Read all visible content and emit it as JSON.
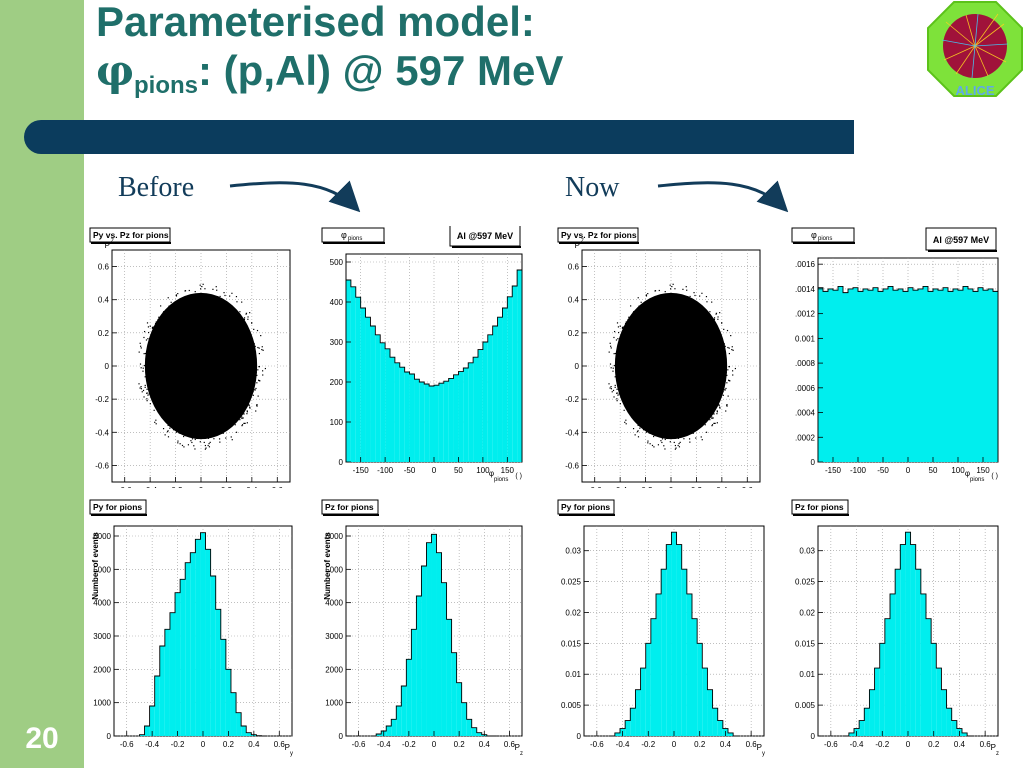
{
  "slide": {
    "title_line1": "Parameterised model:",
    "title_phi": "φ",
    "title_sub": "pions",
    "title_rest": ": (p,Al) @ 597 MeV",
    "page_number": "20",
    "label_before": "Before",
    "label_now": "Now",
    "logo_text": "ALICE"
  },
  "colors": {
    "sidebar": "#9fcd84",
    "title": "#1f6f6a",
    "bar": "#0b3c5d",
    "fill": "#00eeee"
  },
  "chart_data": [
    {
      "id": "before_scatter",
      "type": "scatter",
      "title": "Py vs. Pz for pions",
      "xlabel": "P",
      "xsub": "y",
      "ylabel": "P",
      "ysub": "z",
      "xlim": [
        -0.7,
        0.7
      ],
      "ylim": [
        -0.7,
        0.7
      ],
      "xticks": [
        -0.6,
        -0.4,
        -0.2,
        0,
        0.2,
        0.4,
        0.6
      ],
      "yticks": [
        -0.6,
        -0.4,
        -0.2,
        0,
        0.2,
        0.4,
        0.6
      ],
      "cloud": {
        "center": [
          0,
          0
        ],
        "half_width": 0.48,
        "half_height": 0.48
      }
    },
    {
      "id": "before_phi",
      "type": "bar",
      "title": "φ",
      "title_sub": "pions",
      "legend": "Al @597 MeV",
      "xlabel": "φ",
      "xsub": "pions",
      "xunit": "( )",
      "xlim": [
        -180,
        180
      ],
      "ylim": [
        0,
        520
      ],
      "xticks": [
        -150,
        -100,
        -50,
        0,
        50,
        100,
        150
      ],
      "yticks": [
        0,
        100,
        200,
        300,
        400,
        500
      ],
      "x": [
        -175,
        -165,
        -155,
        -145,
        -135,
        -125,
        -115,
        -105,
        -95,
        -85,
        -75,
        -65,
        -55,
        -45,
        -35,
        -25,
        -15,
        -5,
        5,
        15,
        25,
        35,
        45,
        55,
        65,
        75,
        85,
        95,
        105,
        115,
        125,
        135,
        145,
        155,
        165,
        175
      ],
      "values": [
        455,
        438,
        412,
        385,
        362,
        340,
        318,
        298,
        283,
        262,
        248,
        237,
        225,
        220,
        207,
        200,
        195,
        190,
        192,
        197,
        202,
        209,
        218,
        226,
        235,
        248,
        262,
        281,
        300,
        318,
        340,
        362,
        385,
        413,
        440,
        480
      ]
    },
    {
      "id": "now_scatter",
      "type": "scatter",
      "title": "Py vs. Pz for pions",
      "xlabel": "P",
      "xsub": "y",
      "ylabel": "P",
      "ysub": "z",
      "xlim": [
        -0.7,
        0.7
      ],
      "ylim": [
        -0.7,
        0.7
      ],
      "xticks": [
        -0.6,
        -0.4,
        -0.2,
        0,
        0.2,
        0.4,
        0.6
      ],
      "yticks": [
        -0.6,
        -0.4,
        -0.2,
        0,
        0.2,
        0.4,
        0.6
      ],
      "cloud": {
        "center": [
          0,
          0
        ],
        "half_width": 0.48,
        "half_height": 0.48
      }
    },
    {
      "id": "now_phi",
      "type": "bar",
      "title": "φ",
      "title_sub": "pions",
      "legend": "Al @597 MeV",
      "xlabel": "φ",
      "xsub": "pions",
      "xunit": "( )",
      "xlim": [
        -180,
        180
      ],
      "ylim": [
        0,
        0.00165
      ],
      "xticks": [
        -150,
        -100,
        -50,
        0,
        50,
        100,
        150
      ],
      "yticks": [
        0,
        0.0002,
        0.0004,
        0.0006,
        0.0008,
        0.001,
        0.0012,
        0.0014,
        0.0016
      ],
      "ytick_labels": [
        "0",
        ".0002",
        ".0004",
        ".0006",
        ".0008",
        "0.001",
        ".0012",
        ".0014",
        ".0016"
      ],
      "x": [
        -175,
        -165,
        -155,
        -145,
        -135,
        -125,
        -115,
        -105,
        -95,
        -85,
        -75,
        -65,
        -55,
        -45,
        -35,
        -25,
        -15,
        -5,
        5,
        15,
        25,
        35,
        45,
        55,
        65,
        75,
        85,
        95,
        105,
        115,
        125,
        135,
        145,
        155,
        165,
        175
      ],
      "values": [
        0.00141,
        0.00138,
        0.0014,
        0.00139,
        0.00142,
        0.00137,
        0.0014,
        0.00141,
        0.00138,
        0.0014,
        0.00139,
        0.00141,
        0.00138,
        0.0014,
        0.00142,
        0.00139,
        0.0014,
        0.00138,
        0.00141,
        0.00139,
        0.0014,
        0.00142,
        0.00138,
        0.0014,
        0.00139,
        0.00141,
        0.00138,
        0.0014,
        0.00139,
        0.00142,
        0.0014,
        0.00138,
        0.00141,
        0.00139,
        0.0014,
        0.00138
      ]
    },
    {
      "id": "before_py",
      "type": "bar",
      "title": "Py for pions",
      "xlabel": "P",
      "xsub": "y",
      "ylabel": "Number of events",
      "xlim": [
        -0.7,
        0.7
      ],
      "ylim": [
        0,
        6300
      ],
      "xticks": [
        -0.6,
        -0.4,
        -0.2,
        0,
        0.2,
        0.4,
        0.6
      ],
      "yticks": [
        0,
        1000,
        2000,
        3000,
        4000,
        5000,
        6000
      ],
      "x": [
        -0.48,
        -0.44,
        -0.4,
        -0.36,
        -0.32,
        -0.28,
        -0.24,
        -0.2,
        -0.16,
        -0.12,
        -0.08,
        -0.04,
        0.0,
        0.04,
        0.08,
        0.12,
        0.16,
        0.2,
        0.24,
        0.28,
        0.32,
        0.36,
        0.4,
        0.44,
        0.48
      ],
      "values": [
        40,
        300,
        900,
        1800,
        2700,
        3200,
        3700,
        4300,
        4700,
        5200,
        5500,
        5900,
        6100,
        5600,
        4800,
        3800,
        2900,
        2000,
        1300,
        700,
        300,
        100,
        40,
        10,
        0
      ]
    },
    {
      "id": "before_pz",
      "type": "bar",
      "title": "Pz for pions",
      "xlabel": "P",
      "xsub": "z",
      "ylabel": "Number of events",
      "xlim": [
        -0.7,
        0.7
      ],
      "ylim": [
        0,
        6300
      ],
      "xticks": [
        -0.6,
        -0.4,
        -0.2,
        0,
        0.2,
        0.4,
        0.6
      ],
      "yticks": [
        0,
        1000,
        2000,
        3000,
        4000,
        5000,
        6000
      ],
      "x": [
        -0.48,
        -0.44,
        -0.4,
        -0.36,
        -0.32,
        -0.28,
        -0.24,
        -0.2,
        -0.16,
        -0.12,
        -0.08,
        -0.04,
        0.0,
        0.04,
        0.08,
        0.12,
        0.16,
        0.2,
        0.24,
        0.28,
        0.32,
        0.36,
        0.4,
        0.44,
        0.48
      ],
      "values": [
        0,
        60,
        150,
        300,
        500,
        900,
        1500,
        2300,
        3200,
        4200,
        5100,
        5800,
        6050,
        5500,
        4600,
        3500,
        2500,
        1600,
        1000,
        500,
        250,
        100,
        40,
        0,
        0
      ]
    },
    {
      "id": "now_py",
      "type": "bar",
      "title": "Py for pions",
      "xlabel": "P",
      "xsub": "y",
      "xlim": [
        -0.7,
        0.7
      ],
      "ylim": [
        0,
        0.034
      ],
      "xticks": [
        -0.6,
        -0.4,
        -0.2,
        0,
        0.2,
        0.4,
        0.6
      ],
      "yticks": [
        0,
        0.005,
        0.01,
        0.015,
        0.02,
        0.025,
        0.03
      ],
      "x": [
        -0.48,
        -0.44,
        -0.4,
        -0.36,
        -0.32,
        -0.28,
        -0.24,
        -0.2,
        -0.16,
        -0.12,
        -0.08,
        -0.04,
        0.0,
        0.04,
        0.08,
        0.12,
        0.16,
        0.2,
        0.24,
        0.28,
        0.32,
        0.36,
        0.4,
        0.44,
        0.48
      ],
      "values": [
        0,
        0.0005,
        0.0012,
        0.0025,
        0.0045,
        0.0075,
        0.011,
        0.015,
        0.019,
        0.023,
        0.027,
        0.031,
        0.033,
        0.031,
        0.027,
        0.023,
        0.019,
        0.015,
        0.011,
        0.0075,
        0.0045,
        0.0025,
        0.0012,
        0.0005,
        0
      ]
    },
    {
      "id": "now_pz",
      "type": "bar",
      "title": "Pz for pions",
      "xlabel": "P",
      "xsub": "z",
      "xlim": [
        -0.7,
        0.7
      ],
      "ylim": [
        0,
        0.034
      ],
      "xticks": [
        -0.6,
        -0.4,
        -0.2,
        0,
        0.2,
        0.4,
        0.6
      ],
      "yticks": [
        0,
        0.005,
        0.01,
        0.015,
        0.02,
        0.025,
        0.03
      ],
      "x": [
        -0.48,
        -0.44,
        -0.4,
        -0.36,
        -0.32,
        -0.28,
        -0.24,
        -0.2,
        -0.16,
        -0.12,
        -0.08,
        -0.04,
        0.0,
        0.04,
        0.08,
        0.12,
        0.16,
        0.2,
        0.24,
        0.28,
        0.32,
        0.36,
        0.4,
        0.44,
        0.48
      ],
      "values": [
        0,
        0.0005,
        0.0012,
        0.0025,
        0.0045,
        0.0075,
        0.011,
        0.015,
        0.019,
        0.023,
        0.027,
        0.031,
        0.033,
        0.031,
        0.027,
        0.023,
        0.019,
        0.015,
        0.011,
        0.0075,
        0.0045,
        0.0025,
        0.0012,
        0.0005,
        0
      ]
    }
  ]
}
